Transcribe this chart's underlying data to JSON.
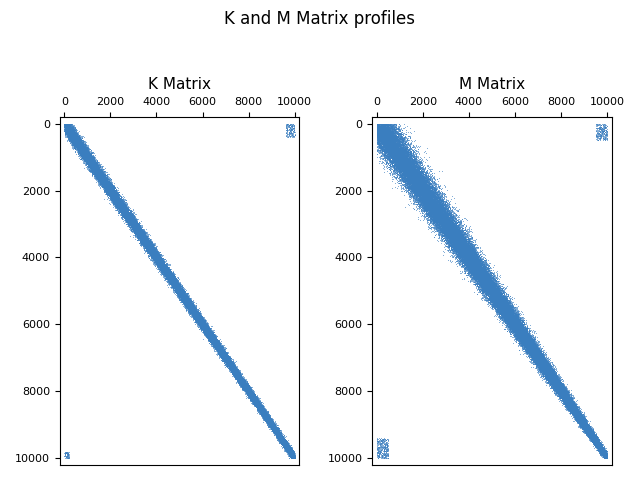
{
  "title": "K and M Matrix profiles",
  "subplot_titles": [
    "K Matrix",
    "M Matrix"
  ],
  "n": 10000,
  "xlim": [
    -200,
    10200
  ],
  "ylim": [
    10200,
    -200
  ],
  "xticks": [
    0,
    2000,
    4000,
    6000,
    8000,
    10000
  ],
  "yticks": [
    0,
    2000,
    4000,
    6000,
    8000,
    10000
  ],
  "color": "#3a7ebf",
  "marker_size": 1.0,
  "figsize": [
    6.4,
    4.8
  ],
  "dpi": 100
}
